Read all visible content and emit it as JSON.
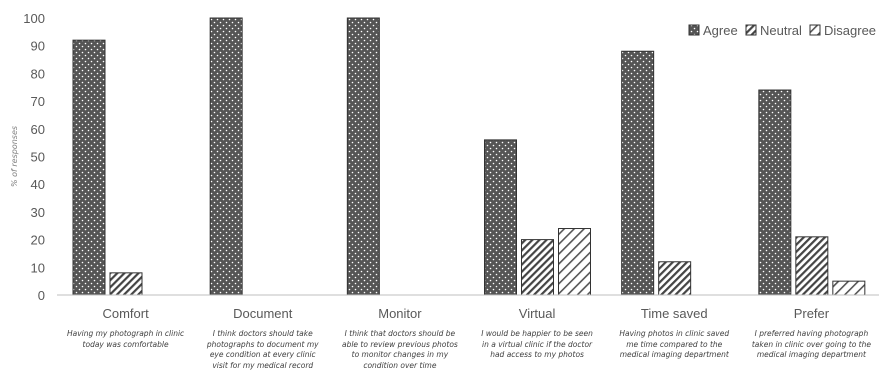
{
  "chart_data": {
    "type": "bar",
    "title": "",
    "xlabel": "",
    "ylabel": "% of responses",
    "ylim": [
      0,
      100
    ],
    "yticks": [
      0,
      10,
      20,
      30,
      40,
      50,
      60,
      70,
      80,
      90,
      100
    ],
    "grid": false,
    "legend_position": "top-right",
    "categories": [
      "Comfort",
      "Document",
      "Monitor",
      "Virtual",
      "Time saved",
      "Prefer"
    ],
    "category_descriptions": [
      "Having my photograph in clinic today was comfortable",
      "I think doctors should take photographs to document my eye condition at every clinic visit for my medical record",
      "I think that doctors should be able to review previous photos to monitor changes in my condition over time",
      "I would be happier to be seen in a virtual clinic if the doctor had access to my photos",
      "Having photos in clinic saved me time compared to the medical imaging department",
      "I preferred having photograph taken in clinic over going to the medical imaging department"
    ],
    "series": [
      {
        "name": "Agree",
        "values": [
          92,
          100,
          100,
          56,
          88,
          74
        ],
        "pattern": "dotted-dark"
      },
      {
        "name": "Neutral",
        "values": [
          8,
          0,
          0,
          20,
          12,
          21
        ],
        "pattern": "diagonal-lines"
      },
      {
        "name": "Disagree",
        "values": [
          0,
          0,
          0,
          24,
          0,
          5
        ],
        "pattern": "light-hatch"
      }
    ],
    "colors": {
      "agree_fill": "#555555",
      "dot": "#ffffff",
      "stroke": "#333333",
      "axis": "#bfbfbf",
      "text": "#595959"
    }
  }
}
